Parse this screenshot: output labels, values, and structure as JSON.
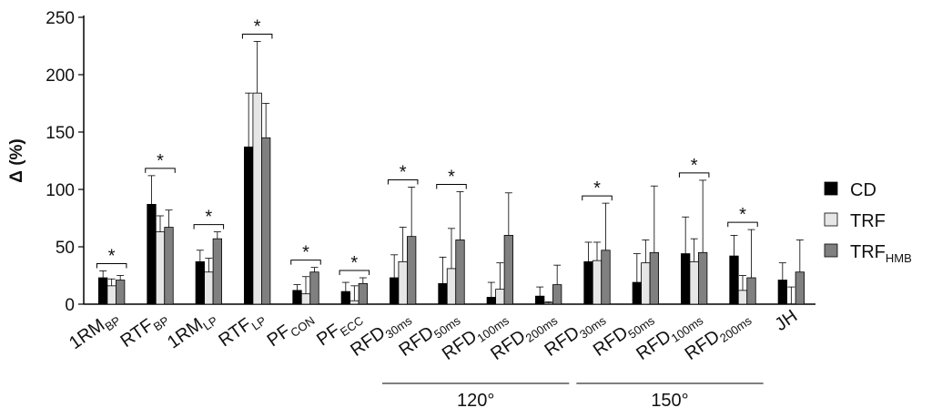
{
  "chart_data": {
    "type": "bar",
    "ylabel": "Δ (%)",
    "ylim": [
      0,
      250
    ],
    "yticks": [
      0,
      50,
      100,
      150,
      200,
      250
    ],
    "grid": false,
    "legend_position": "right",
    "categories": [
      {
        "base": "1RM",
        "sub": "BP",
        "sig": true
      },
      {
        "base": "RTF",
        "sub": "BP",
        "sig": true
      },
      {
        "base": "1RM",
        "sub": "LP",
        "sig": true
      },
      {
        "base": "RTF",
        "sub": "LP",
        "sig": true
      },
      {
        "base": "PF",
        "sub": "CON",
        "sig": true
      },
      {
        "base": "PF",
        "sub": "ECC",
        "sig": true
      },
      {
        "base": "RFD",
        "sub": "30ms",
        "sig": true
      },
      {
        "base": "RFD",
        "sub": "50ms",
        "sig": true
      },
      {
        "base": "RFD",
        "sub": "100ms",
        "sig": false
      },
      {
        "base": "RFD",
        "sub": "200ms",
        "sig": false
      },
      {
        "base": "RFD",
        "sub": "30ms",
        "sig": true
      },
      {
        "base": "RFD",
        "sub": "50ms",
        "sig": false
      },
      {
        "base": "RFD",
        "sub": "100ms",
        "sig": true
      },
      {
        "base": "RFD",
        "sub": "200ms",
        "sig": true
      },
      {
        "base": "JH",
        "sub": "",
        "sig": false
      }
    ],
    "series": [
      {
        "name": "CD",
        "sub": "",
        "color": "#000000",
        "values": [
          23,
          87,
          37,
          137,
          12,
          11,
          23,
          18,
          6,
          7,
          37,
          19,
          44,
          42,
          21
        ],
        "errors": [
          6,
          25,
          10,
          47,
          5,
          8,
          20,
          23,
          13,
          8,
          17,
          25,
          32,
          18,
          15
        ]
      },
      {
        "name": "TRF",
        "sub": "",
        "color": "#e6e6e6",
        "values": [
          16,
          63,
          28,
          184,
          9,
          3,
          37,
          31,
          13,
          1,
          38,
          36,
          37,
          12,
          0
        ],
        "errors": [
          6,
          14,
          12,
          45,
          15,
          13,
          30,
          35,
          23,
          1,
          16,
          20,
          20,
          13,
          15
        ]
      },
      {
        "name": "TRF",
        "sub": "HMB",
        "color": "#808080",
        "values": [
          21,
          67,
          57,
          145,
          28,
          18,
          59,
          56,
          60,
          17,
          47,
          45,
          45,
          23,
          28
        ],
        "errors": [
          4,
          15,
          6,
          30,
          4,
          5,
          43,
          42,
          37,
          17,
          41,
          58,
          63,
          42,
          28
        ]
      }
    ],
    "groups": [
      {
        "label": "120°",
        "from": 6,
        "to": 9
      },
      {
        "label": "150°",
        "from": 10,
        "to": 13
      }
    ],
    "significance_marker": "*"
  }
}
